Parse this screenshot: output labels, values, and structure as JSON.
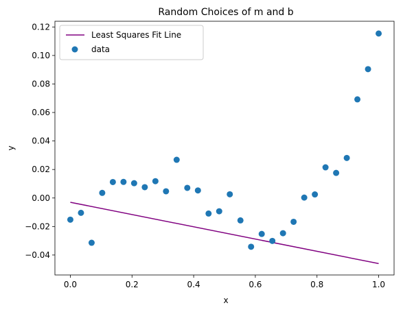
{
  "chart_data": {
    "type": "scatter",
    "title": "Random Choices of m and b",
    "xlabel": "x",
    "ylabel": "y",
    "xlim": [
      -0.05,
      1.05
    ],
    "ylim": [
      -0.054,
      0.124
    ],
    "xticks": [
      0.0,
      0.2,
      0.4,
      0.6,
      0.8,
      1.0
    ],
    "xtick_labels": [
      "0.0",
      "0.2",
      "0.4",
      "0.6",
      "0.8",
      "1.0"
    ],
    "yticks": [
      -0.04,
      -0.02,
      0.0,
      0.02,
      0.04,
      0.06,
      0.08,
      0.1,
      0.12
    ],
    "ytick_labels": [
      "−0.04",
      "−0.02",
      "0.00",
      "0.02",
      "0.04",
      "0.06",
      "0.08",
      "0.10",
      "0.12"
    ],
    "grid": false,
    "legend_position": "top-left",
    "series": [
      {
        "name": "Least Squares Fit Line",
        "kind": "line",
        "color": "#800080",
        "x": [
          0.0,
          1.0
        ],
        "y": [
          -0.003,
          -0.046
        ]
      },
      {
        "name": "data",
        "kind": "scatter",
        "color": "#1f77b4",
        "x": [
          0.0,
          0.0345,
          0.069,
          0.1034,
          0.1379,
          0.1724,
          0.2069,
          0.2414,
          0.2759,
          0.3103,
          0.3448,
          0.3793,
          0.4138,
          0.4483,
          0.4828,
          0.5172,
          0.5517,
          0.5862,
          0.6207,
          0.6552,
          0.6897,
          0.7241,
          0.7586,
          0.7931,
          0.8276,
          0.8621,
          0.8966,
          0.931,
          0.9655,
          1.0
        ],
        "y": [
          -0.0152,
          -0.0104,
          -0.0314,
          0.0036,
          0.0112,
          0.0113,
          0.0104,
          0.0076,
          0.0118,
          0.0047,
          0.0268,
          0.0071,
          0.0053,
          -0.0109,
          -0.0093,
          0.0026,
          -0.0157,
          -0.0342,
          -0.0252,
          -0.0301,
          -0.0247,
          -0.0167,
          0.0003,
          0.0025,
          0.0215,
          0.0176,
          0.0281,
          0.0692,
          0.0904,
          0.1154
        ]
      }
    ]
  }
}
